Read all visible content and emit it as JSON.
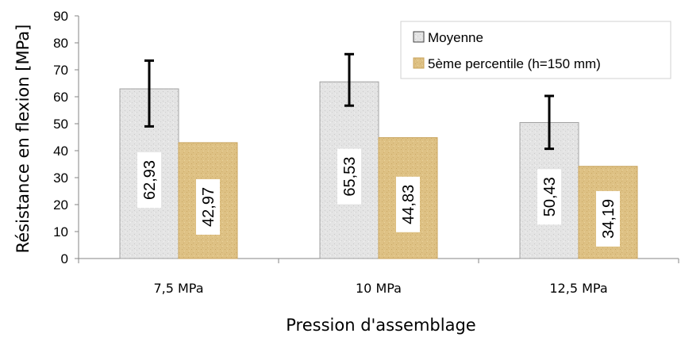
{
  "chart_data": {
    "type": "bar",
    "categories": [
      "7,5 MPa",
      "10 MPa",
      "12,5 MPa"
    ],
    "series": [
      {
        "name": "Moyenne",
        "values": [
          62.93,
          65.53,
          50.43
        ],
        "labels": [
          "62,93",
          "65,53",
          "50,43"
        ],
        "error_high": [
          73.4,
          75.8,
          60.3
        ],
        "error_low": [
          49.0,
          56.7,
          40.7
        ],
        "color": "#e2e2e2",
        "border": "#a0a0a0"
      },
      {
        "name": "5ème percentile (h=150 mm)",
        "values": [
          42.97,
          44.83,
          34.19
        ],
        "labels": [
          "42,97",
          "44,83",
          "34,19"
        ],
        "color": "#dcbf80",
        "border": "#c9a45c"
      }
    ],
    "xlabel": "Pression d'assemblage",
    "ylabel": "Résistance en flexion [MPa]",
    "ylim": [
      0,
      90
    ],
    "yticks": [
      "0",
      "10",
      "20",
      "30",
      "40",
      "50",
      "60",
      "70",
      "80",
      "90"
    ],
    "legend_position": "top-right",
    "grid": false
  }
}
